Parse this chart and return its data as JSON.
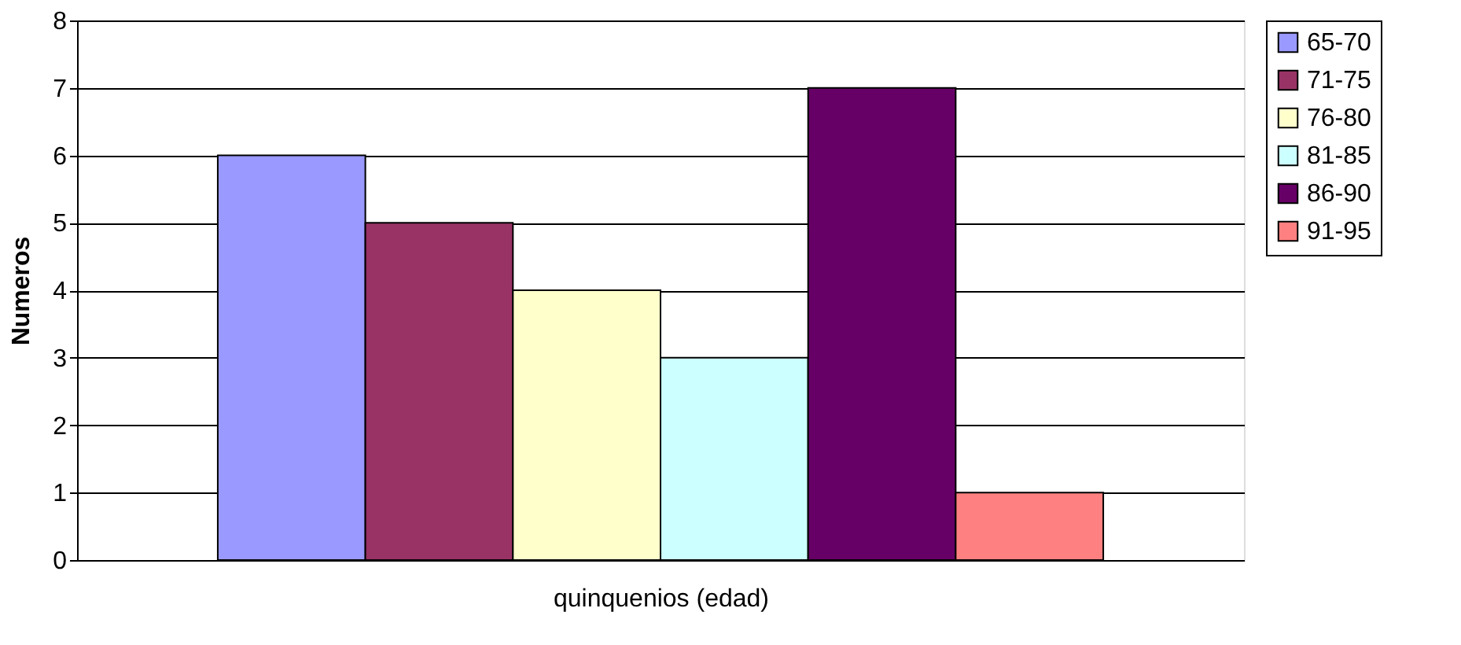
{
  "chart_data": {
    "type": "bar",
    "xlabel": "quinquenios (edad)",
    "ylabel": "Numeros",
    "categories": [
      null
    ],
    "series": [
      {
        "name": "65-70",
        "color": "#9999ff",
        "values": [
          6
        ]
      },
      {
        "name": "71-75",
        "color": "#993366",
        "values": [
          5
        ]
      },
      {
        "name": "76-80",
        "color": "#ffffcc",
        "values": [
          4
        ]
      },
      {
        "name": "81-85",
        "color": "#ccffff",
        "values": [
          3
        ]
      },
      {
        "name": "86-90",
        "color": "#660066",
        "values": [
          7
        ]
      },
      {
        "name": "91-95",
        "color": "#ff8080",
        "values": [
          1
        ]
      }
    ],
    "ylim": [
      0,
      8
    ],
    "yticks": [
      0,
      1,
      2,
      3,
      4,
      5,
      6,
      7,
      8
    ],
    "grid": "y",
    "legend": "right",
    "tick_labels": "y"
  }
}
